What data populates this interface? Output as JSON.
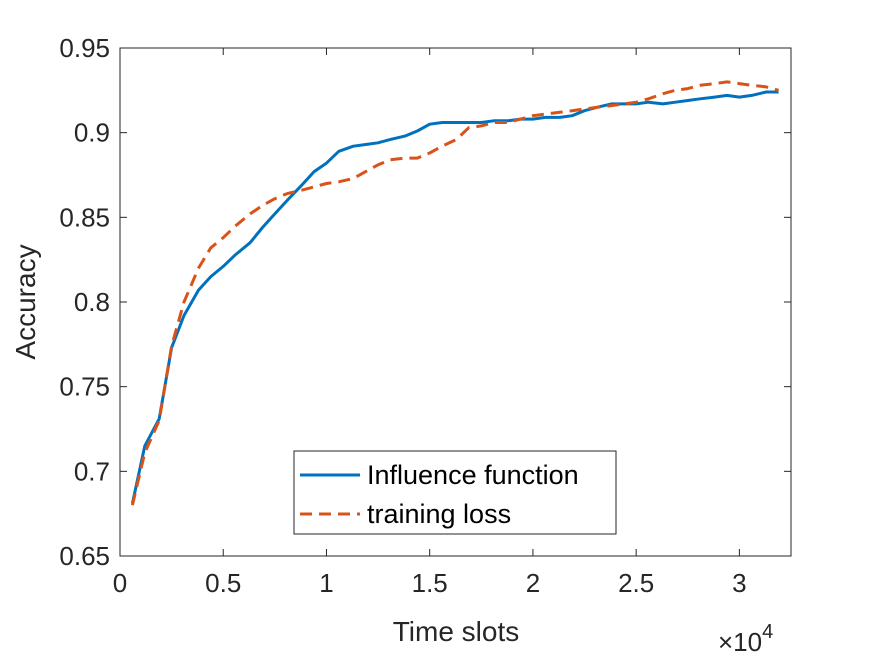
{
  "chart_data": {
    "type": "line",
    "xlabel": "Time slots",
    "ylabel": "Accuracy",
    "x_exponent_label": "×10",
    "x_exponent_power": "4",
    "xlim": [
      0,
      3.25
    ],
    "ylim": [
      0.65,
      0.95
    ],
    "xticks": [
      0,
      0.5,
      1,
      1.5,
      2,
      2.5,
      3
    ],
    "xtick_labels": [
      "0",
      "0.5",
      "1",
      "1.5",
      "2",
      "2.5",
      "3"
    ],
    "yticks": [
      0.65,
      0.7,
      0.75,
      0.8,
      0.85,
      0.9,
      0.95
    ],
    "ytick_labels": [
      "0.65",
      "0.7",
      "0.75",
      "0.8",
      "0.85",
      "0.9",
      "0.95"
    ],
    "grid": false,
    "legend_position": "lower-center",
    "series": [
      {
        "name": "Influence function",
        "color": "#0072BD",
        "style": "solid",
        "x": [
          0.06,
          0.12,
          0.19,
          0.25,
          0.31,
          0.38,
          0.44,
          0.5,
          0.56,
          0.63,
          0.69,
          0.75,
          0.81,
          0.88,
          0.94,
          1.0,
          1.06,
          1.13,
          1.19,
          1.25,
          1.31,
          1.38,
          1.44,
          1.5,
          1.56,
          1.63,
          1.69,
          1.75,
          1.81,
          1.88,
          1.94,
          2.0,
          2.06,
          2.13,
          2.19,
          2.25,
          2.31,
          2.38,
          2.44,
          2.5,
          2.56,
          2.63,
          2.69,
          2.75,
          2.81,
          2.88,
          2.94,
          3.0,
          3.06,
          3.13,
          3.19
        ],
        "y": [
          0.681,
          0.715,
          0.731,
          0.773,
          0.792,
          0.807,
          0.815,
          0.821,
          0.828,
          0.835,
          0.844,
          0.852,
          0.86,
          0.869,
          0.877,
          0.882,
          0.889,
          0.892,
          0.893,
          0.894,
          0.896,
          0.898,
          0.901,
          0.905,
          0.906,
          0.906,
          0.906,
          0.906,
          0.907,
          0.907,
          0.908,
          0.908,
          0.909,
          0.909,
          0.91,
          0.913,
          0.915,
          0.917,
          0.917,
          0.917,
          0.918,
          0.917,
          0.918,
          0.919,
          0.92,
          0.921,
          0.922,
          0.921,
          0.922,
          0.924,
          0.924
        ]
      },
      {
        "name": "training loss",
        "color": "#D95319",
        "style": "dashed",
        "x": [
          0.06,
          0.12,
          0.19,
          0.25,
          0.31,
          0.38,
          0.44,
          0.5,
          0.56,
          0.63,
          0.69,
          0.75,
          0.81,
          0.88,
          0.94,
          1.0,
          1.06,
          1.13,
          1.19,
          1.25,
          1.31,
          1.38,
          1.44,
          1.5,
          1.56,
          1.63,
          1.69,
          1.75,
          1.81,
          1.88,
          1.94,
          2.0,
          2.06,
          2.13,
          2.19,
          2.25,
          2.31,
          2.38,
          2.44,
          2.5,
          2.56,
          2.63,
          2.69,
          2.75,
          2.81,
          2.88,
          2.94,
          3.0,
          3.06,
          3.13,
          3.19
        ],
        "y": [
          0.68,
          0.711,
          0.73,
          0.774,
          0.8,
          0.82,
          0.832,
          0.838,
          0.845,
          0.852,
          0.857,
          0.861,
          0.864,
          0.866,
          0.868,
          0.87,
          0.871,
          0.873,
          0.877,
          0.881,
          0.884,
          0.885,
          0.885,
          0.888,
          0.892,
          0.896,
          0.903,
          0.904,
          0.906,
          0.906,
          0.908,
          0.91,
          0.911,
          0.912,
          0.913,
          0.914,
          0.915,
          0.916,
          0.917,
          0.918,
          0.92,
          0.923,
          0.925,
          0.926,
          0.928,
          0.929,
          0.93,
          0.929,
          0.928,
          0.927,
          0.925
        ]
      }
    ]
  }
}
